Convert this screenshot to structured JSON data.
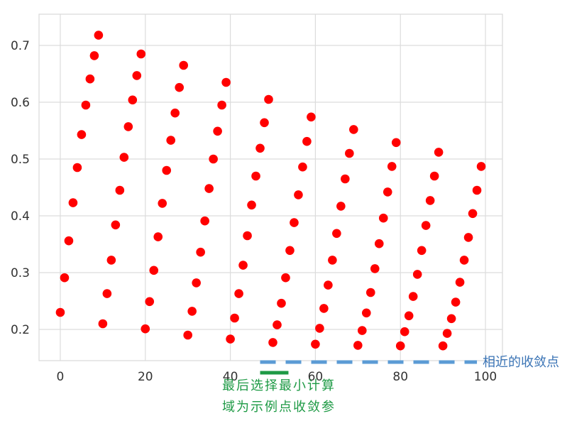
{
  "chart_data": {
    "type": "scatter",
    "title": "",
    "xlabel": "",
    "ylabel": "",
    "xlim": [
      -5,
      104
    ],
    "ylim": [
      0.145,
      0.755
    ],
    "x_ticks": [
      0,
      20,
      40,
      60,
      80,
      100
    ],
    "x_tick_labels": [
      "0",
      "20",
      "40",
      "60",
      "80",
      "100"
    ],
    "y_ticks": [
      0.2,
      0.3,
      0.4,
      0.5,
      0.6,
      0.7
    ],
    "y_tick_labels": [
      "0.2",
      "0.3",
      "0.4",
      "0.5",
      "0.6",
      "0.7"
    ],
    "grid": true,
    "series": [
      {
        "color": "#ff0000",
        "x": [
          0,
          1,
          2,
          3,
          4,
          5,
          6,
          7,
          8,
          9,
          10,
          11,
          12,
          13,
          14,
          15,
          16,
          17,
          18,
          19,
          20,
          21,
          22,
          23,
          24,
          25,
          26,
          27,
          28,
          29,
          30,
          31,
          32,
          33,
          34,
          35,
          36,
          37,
          38,
          39,
          40,
          41,
          42,
          43,
          44,
          45,
          46,
          47,
          48,
          49,
          50,
          51,
          52,
          53,
          54,
          55,
          56,
          57,
          58,
          59,
          60,
          61,
          62,
          63,
          64,
          65,
          66,
          67,
          68,
          69,
          70,
          71,
          72,
          73,
          74,
          75,
          76,
          77,
          78,
          79,
          80,
          81,
          82,
          83,
          84,
          85,
          86,
          87,
          88,
          89,
          90,
          91,
          92,
          93,
          94,
          95,
          96,
          97,
          98,
          99
        ],
        "y": [
          0.23,
          0.291,
          0.356,
          0.423,
          0.485,
          0.543,
          0.595,
          0.641,
          0.682,
          0.718,
          0.21,
          0.263,
          0.322,
          0.384,
          0.445,
          0.503,
          0.557,
          0.604,
          0.647,
          0.685,
          0.201,
          0.249,
          0.304,
          0.363,
          0.422,
          0.48,
          0.533,
          0.581,
          0.626,
          0.665,
          0.19,
          0.232,
          0.282,
          0.336,
          0.391,
          0.448,
          0.5,
          0.549,
          0.595,
          0.635,
          0.183,
          0.22,
          0.263,
          0.313,
          0.365,
          0.419,
          0.47,
          0.519,
          0.564,
          0.605,
          0.177,
          0.208,
          0.246,
          0.291,
          0.339,
          0.388,
          0.437,
          0.486,
          0.531,
          0.574,
          0.174,
          0.202,
          0.237,
          0.278,
          0.322,
          0.369,
          0.417,
          0.465,
          0.51,
          0.552,
          0.172,
          0.198,
          0.229,
          0.265,
          0.307,
          0.351,
          0.396,
          0.442,
          0.487,
          0.529,
          0.171,
          0.196,
          0.224,
          0.258,
          0.297,
          0.339,
          0.383,
          0.427,
          0.47,
          0.512,
          0.171,
          0.193,
          0.219,
          0.248,
          0.283,
          0.322,
          0.362,
          0.404,
          0.445,
          0.487
        ]
      }
    ],
    "annotations": {
      "dashed_line": {
        "y": 0.15,
        "x_start": 47,
        "x_end": 98,
        "color": "#5b9bd5",
        "label": "相近的收敛点"
      },
      "green_segment": {
        "y": 0.14,
        "x_start": 48,
        "x_end": 54,
        "color": "#1e9a45",
        "label_lines": [
          "最后选择最小计算",
          "域为示例点收敛参"
        ]
      }
    }
  }
}
